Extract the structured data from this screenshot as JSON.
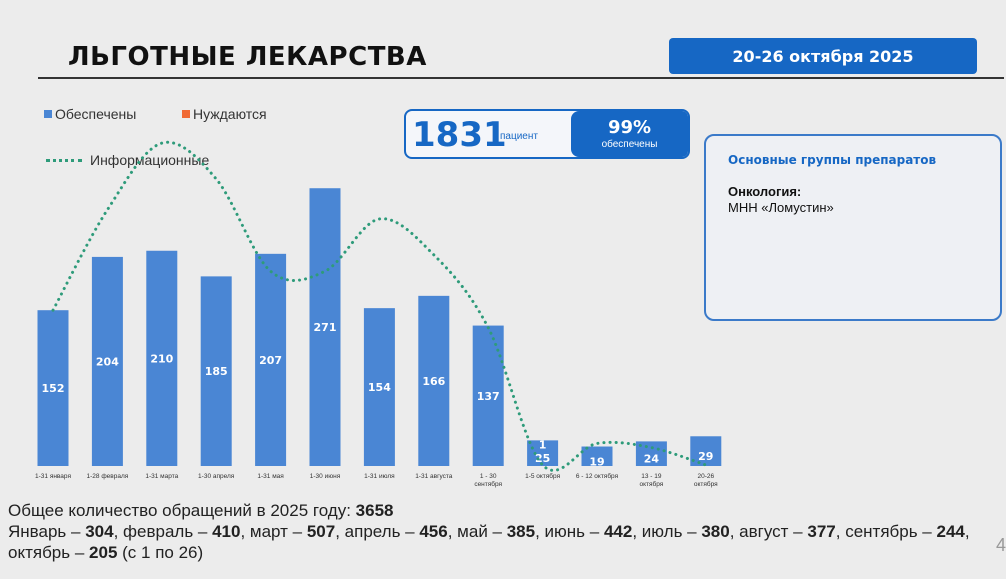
{
  "header": {
    "title": "ЛЬГОТНЫЕ ЛЕКАРСТВА",
    "date_range": "20-26 октября 2025"
  },
  "legend": {
    "provided": "Обеспечены",
    "need": "Нуждаются",
    "info": "Информационные"
  },
  "stats": {
    "patients": "1831",
    "patients_label": "пациент",
    "percent": "99%",
    "percent_label": "обеспечены"
  },
  "info_box": {
    "heading": "Основные группы препаратов",
    "category": "Онкология:",
    "item": "МНН «Ломустин»"
  },
  "colors": {
    "bar": "#4a86d4",
    "accent": "#1667c4",
    "need": "#f06a35",
    "info_line": "#2e9b7a"
  },
  "chart_data": {
    "type": "bar",
    "categories": [
      [
        "1-31 января"
      ],
      [
        "1-28 февраля"
      ],
      [
        "1-31 марта"
      ],
      [
        "1-30 апреля"
      ],
      [
        "1-31 мая"
      ],
      [
        "1-30 июня"
      ],
      [
        "1-31 июля"
      ],
      [
        "1-31 августа"
      ],
      [
        "1 - 30",
        "сентября"
      ],
      [
        "1-5 октября"
      ],
      [
        "6 - 12 октября"
      ],
      [
        "13 - 19",
        "октября"
      ],
      [
        "20-26",
        "октября"
      ]
    ],
    "series": [
      {
        "name": "Обеспечены",
        "values": [
          152,
          204,
          210,
          185,
          207,
          271,
          154,
          166,
          137,
          25,
          19,
          24,
          29
        ]
      },
      {
        "name": "Нуждаются",
        "values": [
          0,
          0,
          0,
          0,
          0,
          0,
          0,
          0,
          0,
          0,
          0,
          0,
          0
        ]
      },
      {
        "name": "Информационные",
        "type": "line",
        "style": "dotted",
        "values": [
          152,
          250,
          315,
          280,
          190,
          190,
          241,
          206,
          135,
          1,
          22,
          18,
          1
        ]
      }
    ],
    "data_labels": [
      "152",
      "204",
      "210",
      "185",
      "207",
      "271",
      "154",
      "166",
      "137",
      "25",
      "19",
      "24",
      "29"
    ],
    "extra_labels": [
      {
        "category_index": 9,
        "text": "1"
      }
    ],
    "ylim": [
      0,
      320
    ],
    "grid": false,
    "legend_position": "top-left"
  },
  "summary": {
    "line1_text": "Общее количество обращений в 2025 году: ",
    "line1_total": "3658",
    "months": [
      {
        "name": "Январь",
        "value": "304"
      },
      {
        "name": "февраль",
        "value": "410"
      },
      {
        "name": "март",
        "value": "507"
      },
      {
        "name": "апрель",
        "value": "456"
      },
      {
        "name": "май",
        "value": "385"
      },
      {
        "name": "июнь",
        "value": "442"
      },
      {
        "name": "июль",
        "value": "380"
      },
      {
        "name": "август",
        "value": "377"
      },
      {
        "name": "сентябрь",
        "value": "244"
      },
      {
        "name": "октябрь",
        "value": "205"
      }
    ],
    "note": "(с 1 по 26)"
  },
  "page_number": "4"
}
